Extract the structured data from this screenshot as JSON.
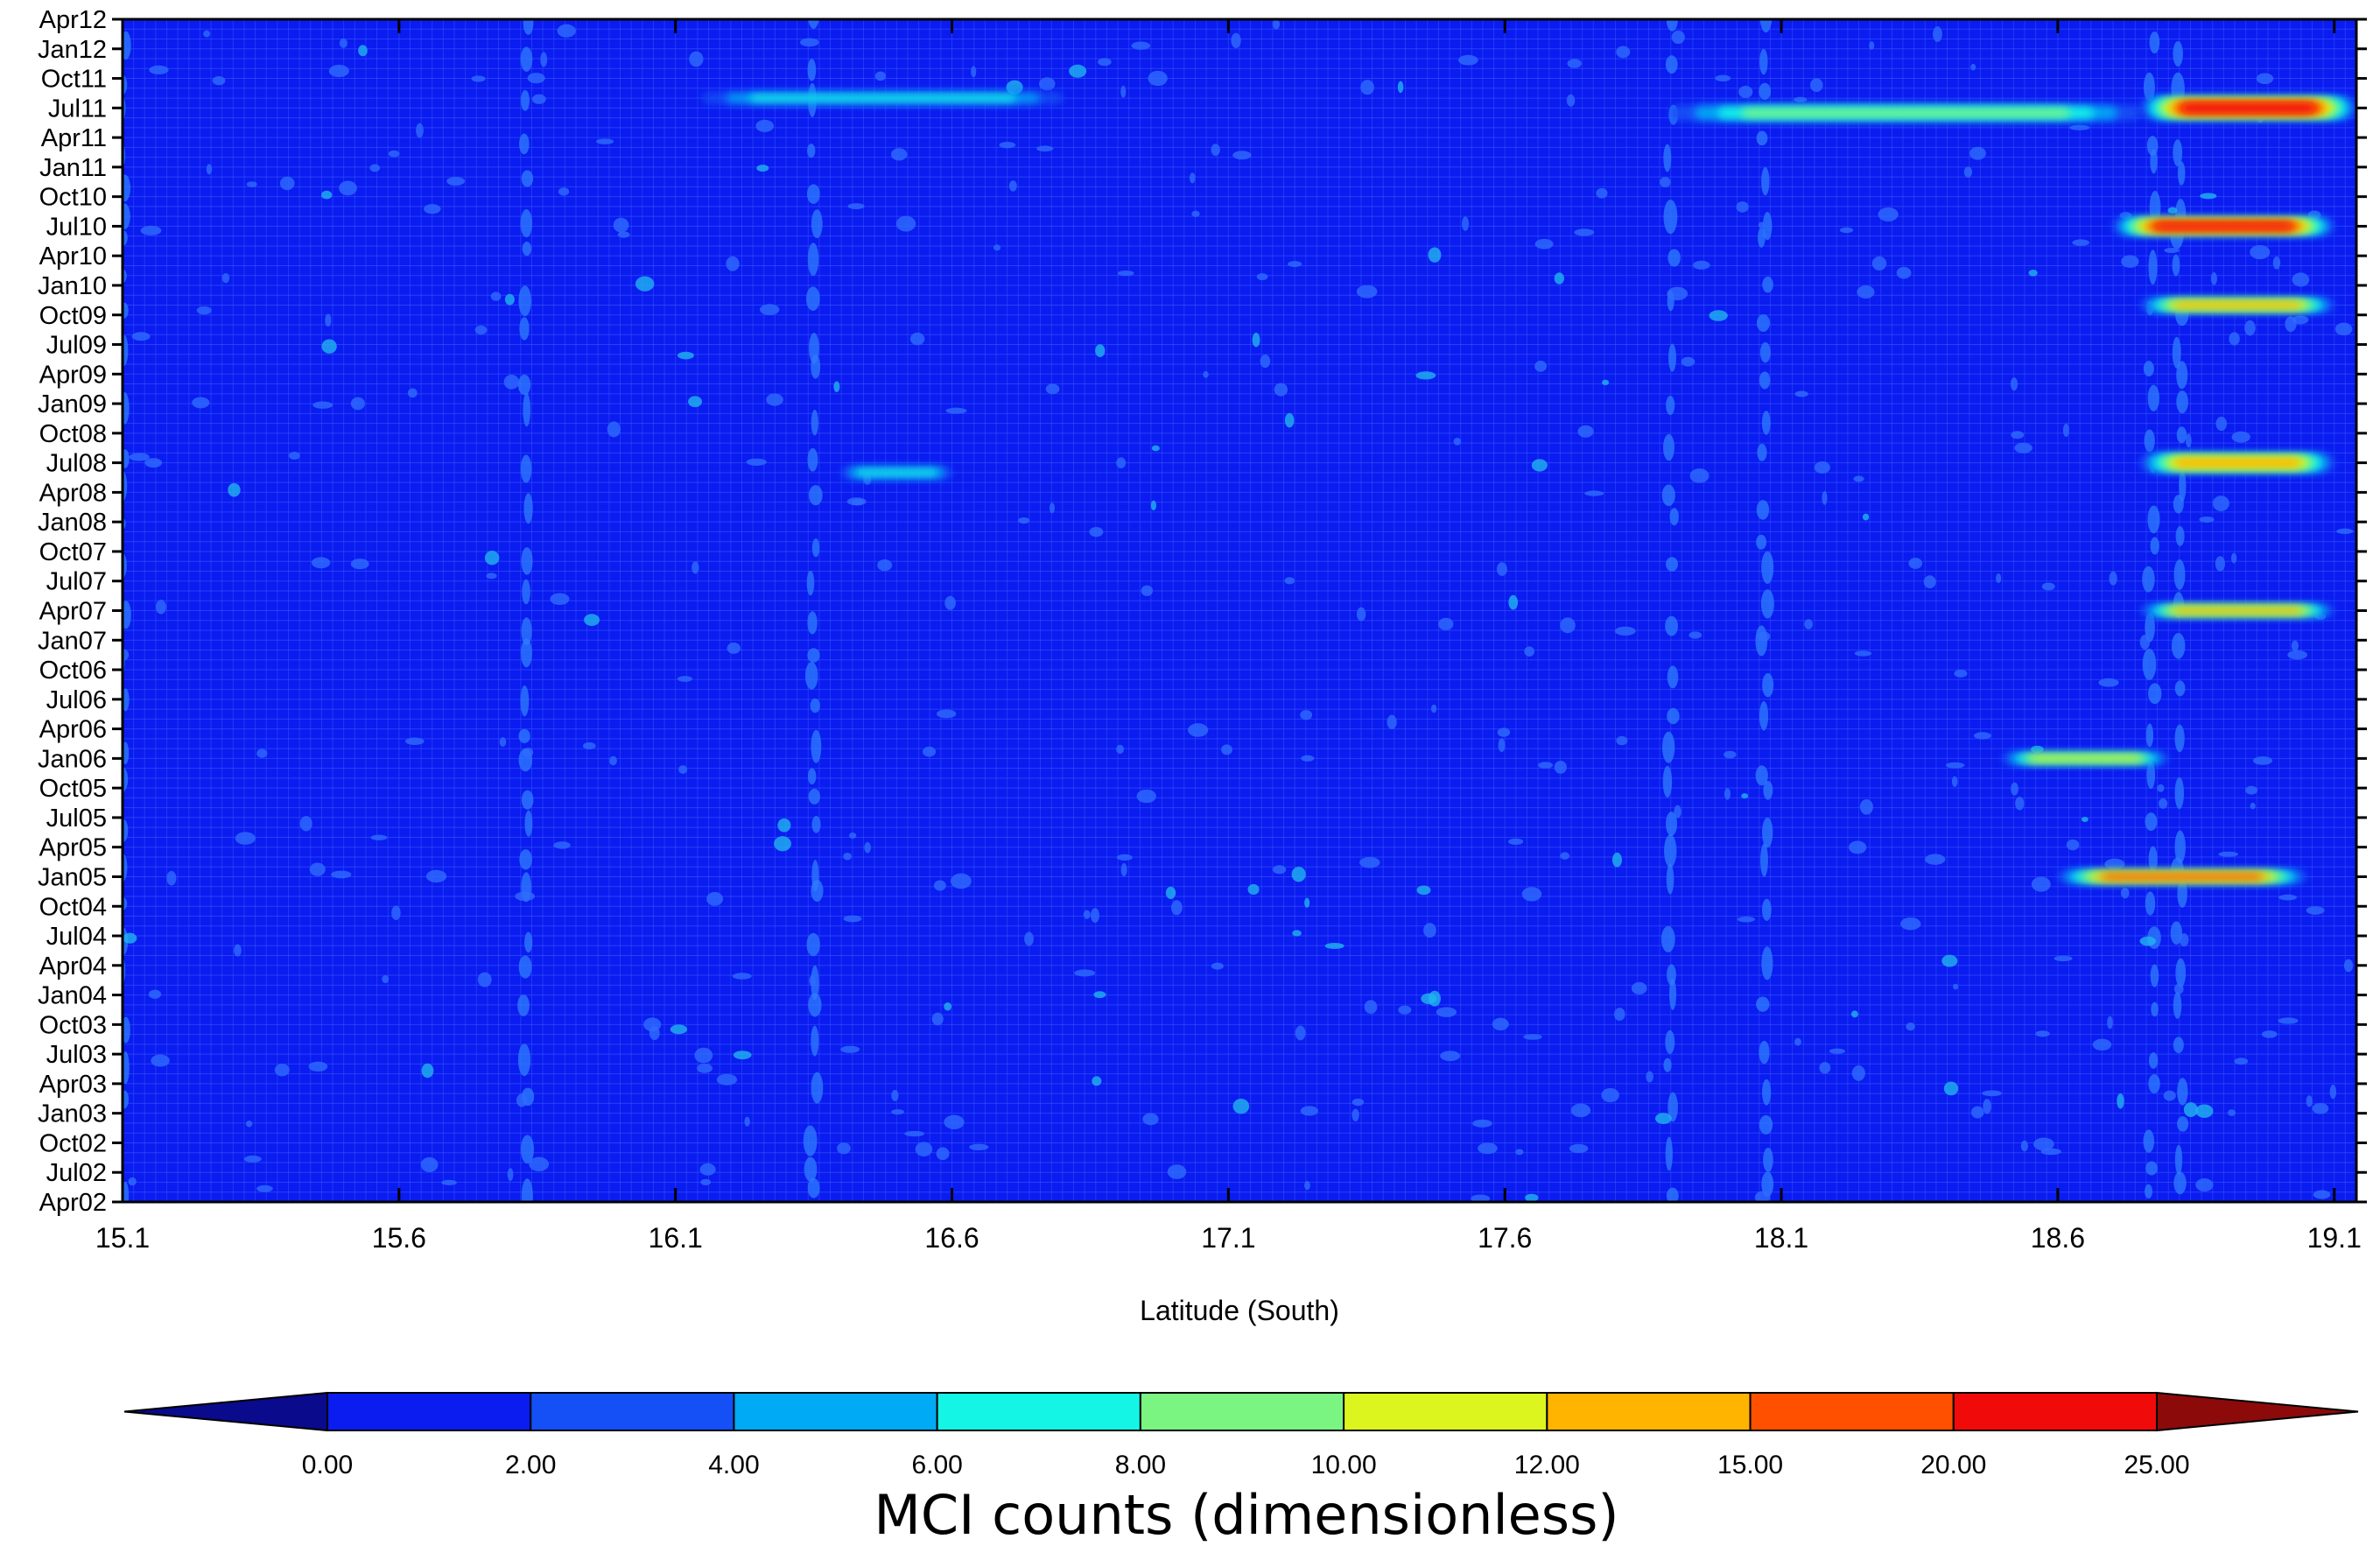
{
  "chart_data": {
    "type": "heatmap",
    "xlabel": "Latitude (South)",
    "ylabel": "",
    "x_ticks": [
      "15.1",
      "15.6",
      "16.1",
      "16.6",
      "17.1",
      "17.6",
      "18.1",
      "18.6",
      "19.1"
    ],
    "x_range": [
      15.1,
      19.14
    ],
    "y_ticks": [
      "Apr02",
      "Jul02",
      "Oct02",
      "Jan03",
      "Apr03",
      "Jul03",
      "Oct03",
      "Jan04",
      "Apr04",
      "Jul04",
      "Oct04",
      "Jan05",
      "Apr05",
      "Jul05",
      "Oct05",
      "Jan06",
      "Apr06",
      "Jul06",
      "Oct06",
      "Jan07",
      "Apr07",
      "Jul07",
      "Oct07",
      "Jan08",
      "Apr08",
      "Jul08",
      "Oct08",
      "Jan09",
      "Apr09",
      "Jul09",
      "Oct09",
      "Jan10",
      "Apr10",
      "Jul10",
      "Oct10",
      "Jan11",
      "Apr11",
      "Jul11",
      "Oct11",
      "Jan12",
      "Apr12"
    ],
    "y_range": [
      "Apr02",
      "Apr12"
    ],
    "grid": true,
    "colorbar": {
      "title": "MCI counts (dimensionless)",
      "labels": [
        "0.00",
        "2.00",
        "4.00",
        "6.00",
        "8.00",
        "10.00",
        "12.00",
        "15.00",
        "20.00",
        "25.00"
      ],
      "levels": [
        0,
        2,
        4,
        6,
        8,
        10,
        12,
        15,
        20,
        25
      ],
      "colors": [
        "#0a1cf0",
        "#1450f5",
        "#00aaf5",
        "#14f5e6",
        "#7af582",
        "#dcf51e",
        "#ffb400",
        "#ff5000",
        "#f00a0a"
      ],
      "under_color": "#0a0a8c",
      "over_color": "#8c0a0a",
      "placement": "bottom"
    },
    "background_value_range": [
      0,
      2
    ],
    "features": [
      {
        "note": "bands",
        "lat_start": 18.75,
        "lat_end": 19.14,
        "month_index": 111,
        "month_span": 2.2,
        "max_value": 25
      },
      {
        "lat_start": 17.9,
        "lat_end": 18.75,
        "month_index": 110.5,
        "month_span": 1.5,
        "max_value": 9
      },
      {
        "lat_start": 16.15,
        "lat_end": 16.8,
        "month_index": 112,
        "month_span": 1,
        "max_value": 7
      },
      {
        "lat_start": 18.7,
        "lat_end": 19.1,
        "month_index": 99,
        "month_span": 1.6,
        "max_value": 21
      },
      {
        "lat_start": 18.75,
        "lat_end": 19.1,
        "month_index": 91,
        "month_span": 1.2,
        "max_value": 13
      },
      {
        "lat_start": 18.75,
        "lat_end": 19.1,
        "month_index": 75,
        "month_span": 1.8,
        "max_value": 14
      },
      {
        "lat_start": 18.75,
        "lat_end": 19.1,
        "month_index": 60,
        "month_span": 1,
        "max_value": 13
      },
      {
        "lat_start": 18.6,
        "lat_end": 19.05,
        "month_index": 33,
        "month_span": 1.1,
        "max_value": 18
      },
      {
        "lat_start": 18.5,
        "lat_end": 18.8,
        "month_index": 45,
        "month_span": 1,
        "max_value": 10
      },
      {
        "lat_start": 16.4,
        "lat_end": 16.6,
        "month_index": 74,
        "month_span": 1,
        "max_value": 6
      }
    ]
  }
}
